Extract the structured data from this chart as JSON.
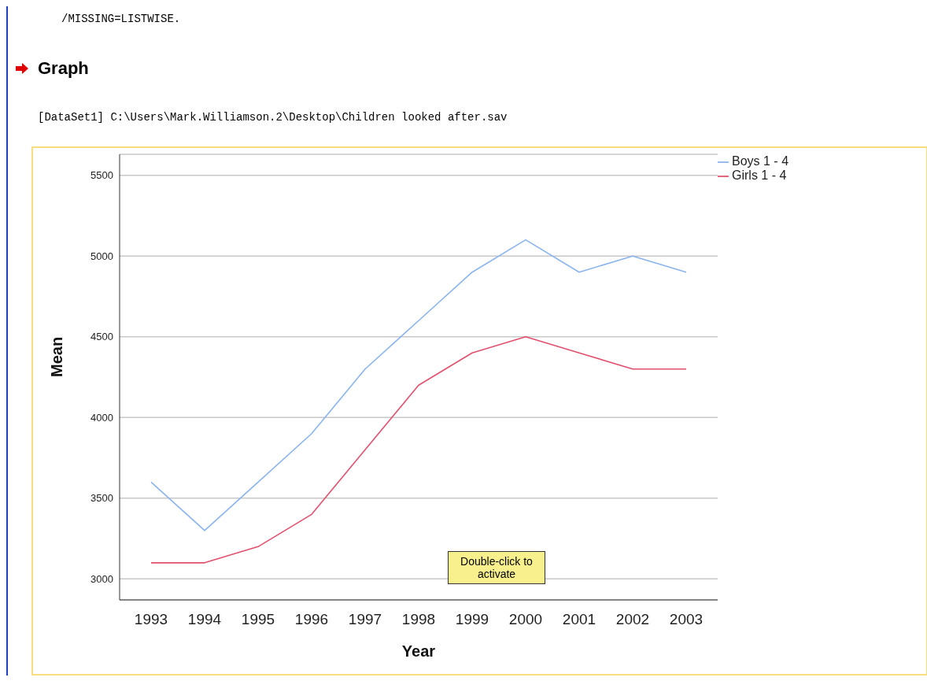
{
  "chart_data": {
    "type": "line",
    "title": "Graph",
    "xlabel": "Year",
    "ylabel": "Mean",
    "annotations": [
      "/MISSING=LISTWISE.",
      "[DataSet1] C:\\Users\\Mark.Williamson.2\\Desktop\\Children looked after.sav",
      "Double-click to activate"
    ],
    "categories": [
      "1993",
      "1994",
      "1995",
      "1996",
      "1997",
      "1998",
      "1999",
      "2000",
      "2001",
      "2002",
      "2003"
    ],
    "series": [
      {
        "name": "Boys 1 - 4",
        "color": "#8ab4ee",
        "values": [
          3600,
          3300,
          3600,
          3900,
          4300,
          4600,
          4900,
          5100,
          4900,
          5000,
          4900
        ]
      },
      {
        "name": "Girls 1 - 4",
        "color": "#e2506e",
        "values": [
          3100,
          3100,
          3200,
          3400,
          3800,
          4200,
          4400,
          4500,
          4400,
          4300,
          4300
        ]
      }
    ],
    "ylim": [
      2870,
      5630
    ],
    "yticks": [
      3000,
      3500,
      4000,
      4500,
      5000,
      5500
    ],
    "grid": "y",
    "legend": "top right",
    "marker": "none",
    "line_style": "solid"
  }
}
